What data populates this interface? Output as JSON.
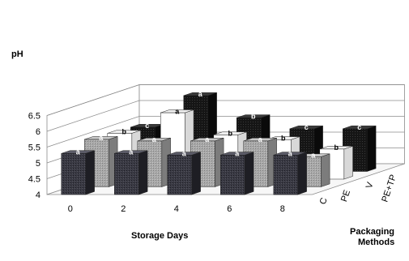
{
  "chart_data": {
    "type": "bar",
    "y_label": "pH",
    "x_label": "Storage Days",
    "z_label": [
      "Packaging",
      "Methods"
    ],
    "y_ticks": [
      "4",
      "4.5",
      "5",
      "5.5",
      "6",
      "6.5"
    ],
    "ylim": [
      4,
      6.5
    ],
    "categories": [
      "0",
      "2",
      "4",
      "6",
      "8"
    ],
    "series": [
      {
        "name": "C",
        "values": [
          5.3,
          5.3,
          5.25,
          5.25,
          5.25
        ],
        "letters": [
          "a",
          "a",
          "a",
          "a",
          "a"
        ],
        "fill": "#2e2e36"
      },
      {
        "name": "PE",
        "values": [
          5.5,
          5.45,
          5.45,
          5.45,
          4.95
        ],
        "letters": [
          "a",
          "a",
          "a",
          "a",
          "a"
        ],
        "fill": "#9a9a9a"
      },
      {
        "name": "V",
        "values": [
          5.45,
          6.1,
          5.4,
          5.25,
          4.95
        ],
        "letters": [
          "b",
          "a",
          "b",
          "b",
          "b"
        ],
        "fill": "#ffffff"
      },
      {
        "name": "PE+TP",
        "values": [
          5.4,
          6.4,
          5.7,
          5.35,
          5.35
        ],
        "letters": [
          "c",
          "a",
          "b",
          "c",
          "c"
        ],
        "fill": "#141414"
      }
    ],
    "grid": true
  }
}
